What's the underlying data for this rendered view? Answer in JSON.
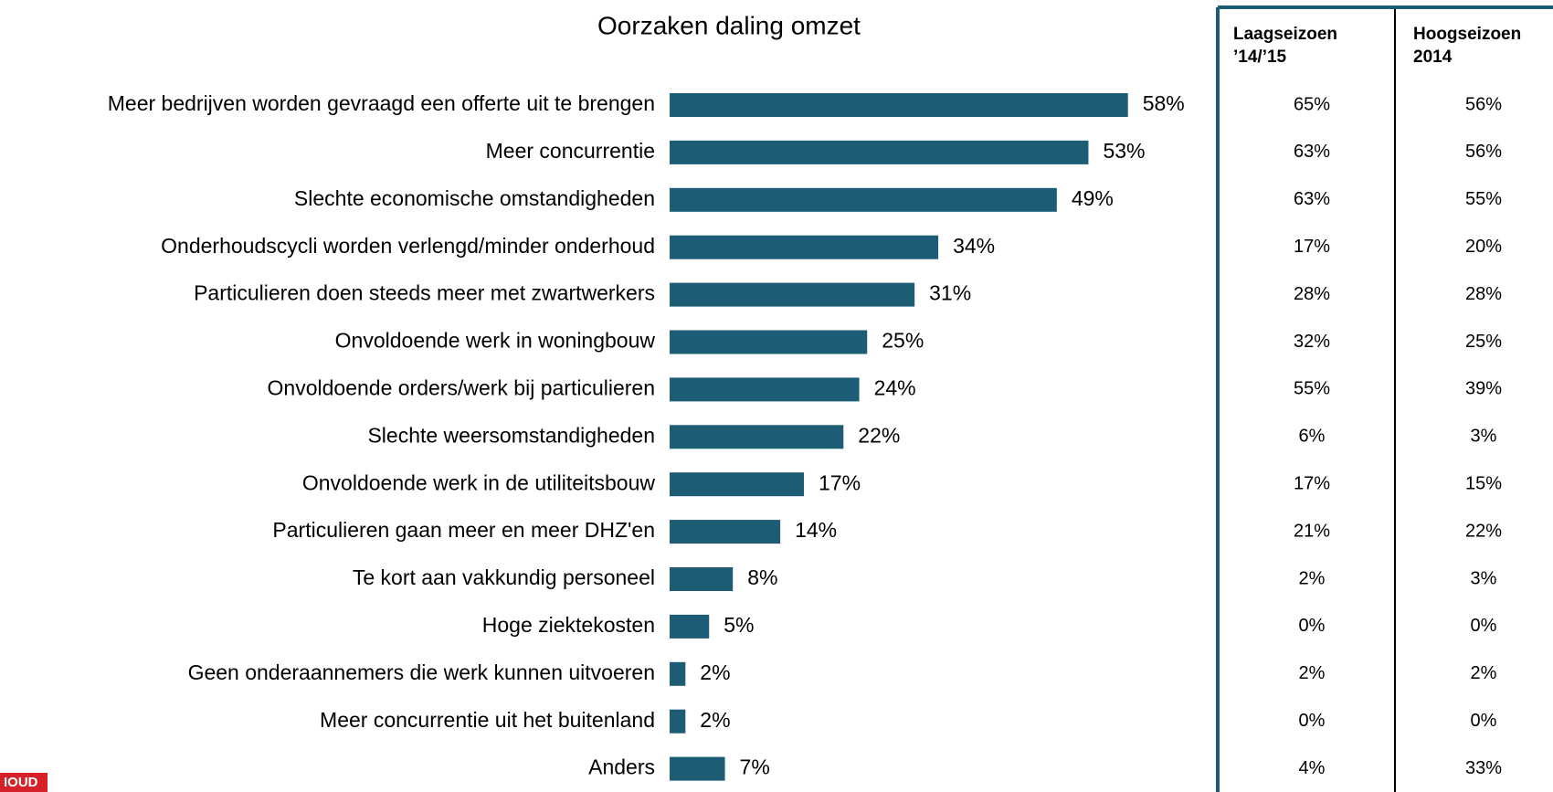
{
  "chart_data": {
    "type": "barh",
    "title": "Oorzaken daling omzet",
    "categories": [
      "Meer bedrijven worden gevraagd een offerte uit te brengen",
      "Meer concurrentie",
      "Slechte economische omstandigheden",
      "Onderhoudscycli worden verlengd/minder onderhoud",
      "Particulieren doen steeds meer met zwartwerkers",
      "Onvoldoende werk in woningbouw",
      "Onvoldoende orders/werk bij particulieren",
      "Slechte weersomstandigheden",
      "Onvoldoende werk in de utiliteitsbouw",
      "Particulieren gaan meer en meer DHZ'en",
      "Te kort aan vakkundig personeel",
      "Hoge ziektekosten",
      "Geen onderaannemers die werk kunnen uitvoeren",
      "Meer concurrentie uit het buitenland",
      "Anders"
    ],
    "values": [
      58,
      53,
      49,
      34,
      31,
      25,
      24,
      22,
      17,
      14,
      8,
      5,
      2,
      2,
      7
    ],
    "value_labels": [
      "58%",
      "53%",
      "49%",
      "34%",
      "31%",
      "25%",
      "24%",
      "22%",
      "17%",
      "14%",
      "8%",
      "5%",
      "2%",
      "2%",
      "7%"
    ],
    "color": "#1c5d75"
  },
  "table": {
    "columns": [
      [
        "Laagseizoen",
        "’14/’15"
      ],
      [
        "Hoogseizoen",
        "2014"
      ]
    ],
    "rows": [
      [
        "65%",
        "56%"
      ],
      [
        "63%",
        "56%"
      ],
      [
        "63%",
        "55%"
      ],
      [
        "17%",
        "20%"
      ],
      [
        "28%",
        "28%"
      ],
      [
        "32%",
        "25%"
      ],
      [
        "55%",
        "39%"
      ],
      [
        "6%",
        "3%"
      ],
      [
        "17%",
        "15%"
      ],
      [
        "21%",
        "22%"
      ],
      [
        "2%",
        "3%"
      ],
      [
        "0%",
        "0%"
      ],
      [
        "2%",
        "2%"
      ],
      [
        "0%",
        "0%"
      ],
      [
        "4%",
        "33%"
      ]
    ]
  },
  "logo": "IOUD"
}
